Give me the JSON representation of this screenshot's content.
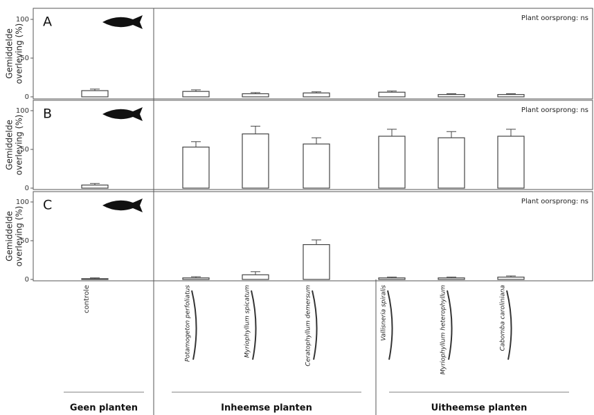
{
  "x_axis": {
    "categories": [
      "controle",
      "Potamogeton perfoliatus",
      "Myriophyllum spicatum",
      "Ceratophyllum demersum",
      "Vallisneria spiralis",
      "Myriophyllum heterophyllum",
      "Cabomba caroliniana"
    ],
    "groups": [
      "Geen planten",
      "Inheemse planten",
      "Uitheemse planten"
    ]
  },
  "chart_data": [
    {
      "type": "bar",
      "panel": "A",
      "annotation": "Plant oorsprong: ns",
      "ylabel": [
        "Gemiddelde",
        "overleving (%)"
      ],
      "values": [
        8,
        7,
        4,
        5,
        6,
        3,
        3
      ],
      "errors": [
        2,
        2,
        1.5,
        1.5,
        1.5,
        1,
        1
      ],
      "ylim": [
        0,
        110
      ],
      "yticks": [
        0,
        50,
        100
      ],
      "color": "#ffffff"
    },
    {
      "type": "bar",
      "panel": "B",
      "annotation": "Plant oorsprong: ns",
      "ylabel": [
        "Gemiddelde",
        "overleving (%)"
      ],
      "values": [
        4,
        53,
        70,
        57,
        67,
        65,
        67
      ],
      "errors": [
        2,
        7,
        10,
        8,
        9,
        8,
        9
      ],
      "ylim": [
        0,
        110
      ],
      "yticks": [
        0,
        50,
        100
      ],
      "color": "#ffffff"
    },
    {
      "type": "bar",
      "panel": "C",
      "annotation": "Plant oorsprong: ns",
      "ylabel": [
        "Gemiddelde",
        "overleving (%)"
      ],
      "values": [
        1,
        2,
        6,
        45,
        2,
        2,
        3
      ],
      "errors": [
        1,
        1.5,
        4,
        6,
        1,
        1,
        1.5
      ],
      "ylim": [
        0,
        110
      ],
      "yticks": [
        0,
        50,
        100
      ],
      "color": "#ffffff"
    }
  ]
}
